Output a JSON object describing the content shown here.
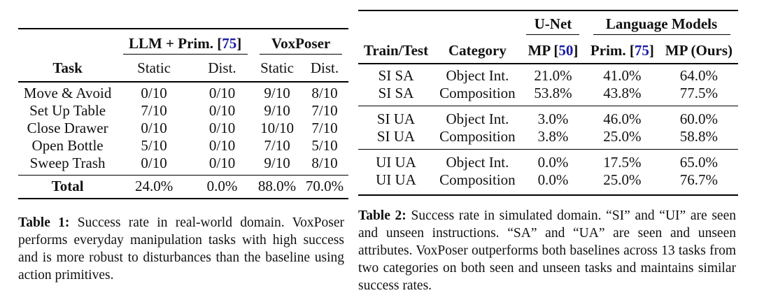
{
  "table1": {
    "group_headers": {
      "llm_label": "LLM + Prim. [",
      "llm_cite": "75",
      "llm_close": "]",
      "voxposer": "VoxPoser"
    },
    "col_headers": [
      "Task",
      "Static",
      "Dist.",
      "Static",
      "Dist."
    ],
    "rows": [
      [
        "Move & Avoid",
        "0/10",
        "0/10",
        "9/10",
        "8/10"
      ],
      [
        "Set Up Table",
        "7/10",
        "0/10",
        "9/10",
        "7/10"
      ],
      [
        "Close Drawer",
        "0/10",
        "0/10",
        "10/10",
        "7/10"
      ],
      [
        "Open Bottle",
        "5/10",
        "0/10",
        "7/10",
        "5/10"
      ],
      [
        "Sweep Trash",
        "0/10",
        "0/10",
        "9/10",
        "8/10"
      ]
    ],
    "total": [
      "Total",
      "24.0%",
      "0.0%",
      "88.0%",
      "70.0%"
    ]
  },
  "caption1": {
    "label": "Table 1:",
    "text": " Success rate in real-world domain. VoxPoser performs everyday manipulation tasks with high success and is more robust to disturbances than the baseline using action primitives."
  },
  "table2": {
    "group_headers": {
      "unet": "U-Net",
      "lm": "Language Models"
    },
    "col_headers": {
      "train_test": "Train/Test",
      "category": "Category",
      "mp_label": "MP [",
      "mp_cite": "50",
      "mp_close": "]",
      "prim_label": "Prim. [",
      "prim_cite": "75",
      "prim_close": "]",
      "ours": "MP (Ours)"
    },
    "groups": [
      [
        [
          "SI SA",
          "Object Int.",
          "21.0%",
          "41.0%",
          "64.0%"
        ],
        [
          "SI SA",
          "Composition",
          "53.8%",
          "43.8%",
          "77.5%"
        ]
      ],
      [
        [
          "SI UA",
          "Object Int.",
          "3.0%",
          "46.0%",
          "60.0%"
        ],
        [
          "SI UA",
          "Composition",
          "3.8%",
          "25.0%",
          "58.8%"
        ]
      ],
      [
        [
          "UI UA",
          "Object Int.",
          "0.0%",
          "17.5%",
          "65.0%"
        ],
        [
          "UI UA",
          "Composition",
          "0.0%",
          "25.0%",
          "76.7%"
        ]
      ]
    ]
  },
  "caption2": {
    "label": "Table 2:",
    "text": " Success rate in simulated domain. “SI” and “UI” are seen and unseen instructions. “SA” and “UA” are seen and unseen attributes.  VoxPoser outperforms both baselines across 13 tasks from two categories on both seen and unseen tasks and maintains similar success rates."
  }
}
